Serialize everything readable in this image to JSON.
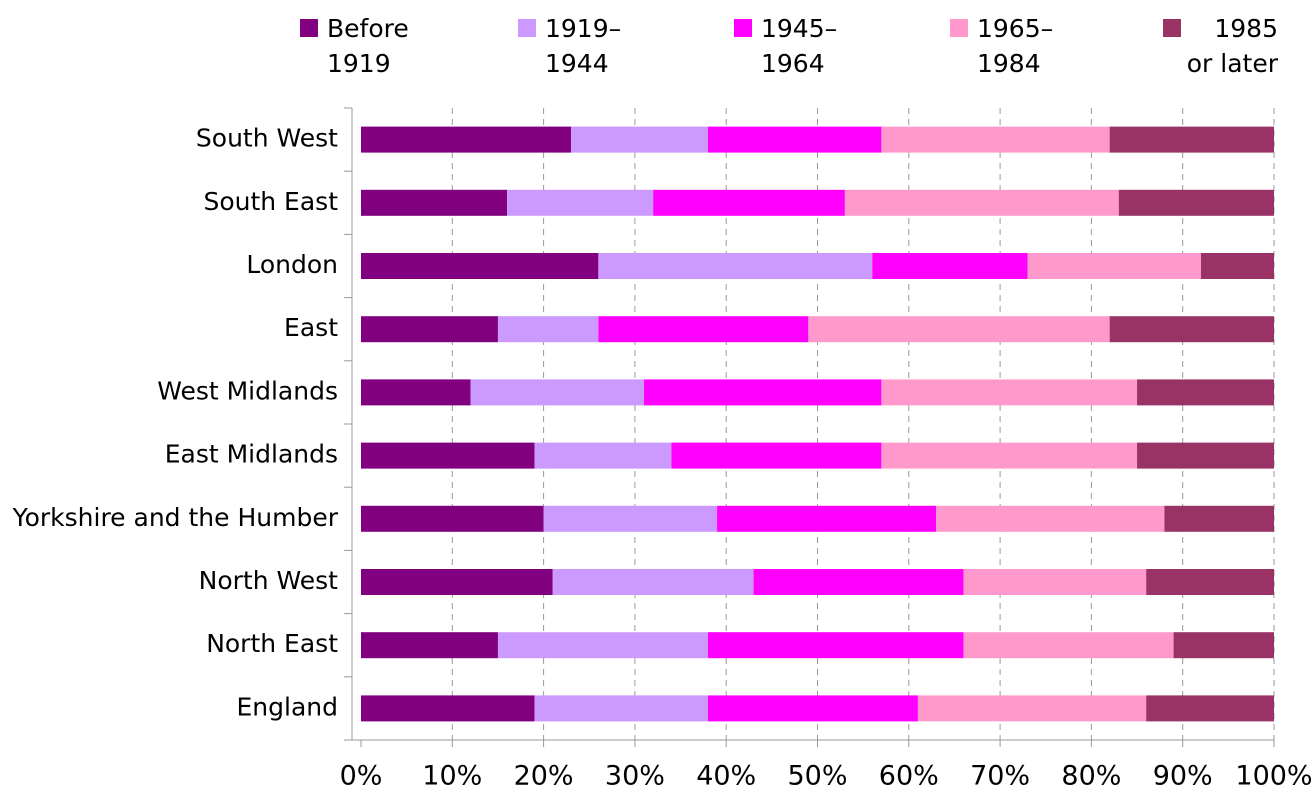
{
  "chart_data": {
    "type": "stacked_barh",
    "categories": [
      "South West",
      "South East",
      "London",
      "East",
      "West Midlands",
      "East Midlands",
      "Yorkshire and the Humber",
      "North West",
      "North East",
      "England"
    ],
    "series": [
      {
        "name": "Before\n1919",
        "color": "#800080",
        "values": [
          23,
          16,
          26,
          15,
          12,
          19,
          20,
          21,
          15,
          19
        ]
      },
      {
        "name": "1919–\n1944",
        "color": "#cc99ff",
        "values": [
          15,
          16,
          30,
          11,
          19,
          15,
          19,
          22,
          23,
          19
        ]
      },
      {
        "name": "1945–\n1964",
        "color": "#ff00ff",
        "values": [
          19,
          21,
          17,
          23,
          26,
          23,
          24,
          23,
          28,
          23
        ]
      },
      {
        "name": "1965–\n1984",
        "color": "#ff99cc",
        "values": [
          25,
          30,
          19,
          33,
          28,
          28,
          25,
          20,
          23,
          25
        ]
      },
      {
        "name": "1985\nor later",
        "color": "#993366",
        "values": [
          18,
          17,
          8,
          18,
          15,
          15,
          12,
          14,
          11,
          14
        ]
      }
    ],
    "xlim": [
      0,
      100
    ],
    "xticks": [
      {
        "value": 0,
        "label": "0%"
      },
      {
        "value": 10,
        "label": "10%"
      },
      {
        "value": 20,
        "label": "20%"
      },
      {
        "value": 30,
        "label": "30%"
      },
      {
        "value": 40,
        "label": "40%"
      },
      {
        "value": 50,
        "label": "50%"
      },
      {
        "value": 60,
        "label": "60%"
      },
      {
        "value": 70,
        "label": "70%"
      },
      {
        "value": 80,
        "label": "80%"
      },
      {
        "value": 90,
        "label": "90%"
      },
      {
        "value": 100,
        "label": "100%"
      }
    ],
    "grid": true,
    "legend": "top"
  }
}
